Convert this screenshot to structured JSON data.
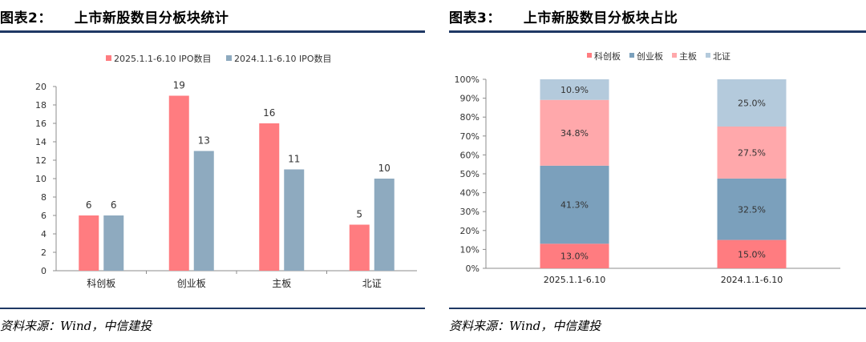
{
  "figures": {
    "left": {
      "label": "图表2：",
      "title": "上市新股数目分板块统计",
      "source": "资料来源：Wind，中信建投"
    },
    "right": {
      "label": "图表3：",
      "title": "上市新股数目分板块占比",
      "source": "资料来源：Wind，中信建投"
    }
  },
  "chart_data": [
    {
      "type": "bar",
      "title": "",
      "categories": [
        "科创板",
        "创业板",
        "主板",
        "北证"
      ],
      "series": [
        {
          "name": "2025.1.1-6.10 IPO数目",
          "values": [
            6,
            19,
            16,
            5
          ],
          "color": "#ff7c80"
        },
        {
          "name": "2024.1.1-6.10 IPO数目",
          "values": [
            6,
            13,
            11,
            10
          ],
          "color": "#8eaabf"
        }
      ],
      "ylim": [
        0,
        20
      ],
      "yticks": [
        0,
        2,
        4,
        6,
        8,
        10,
        12,
        14,
        16,
        18,
        20
      ],
      "grid": false,
      "legend": "top",
      "data_labels": true
    },
    {
      "type": "bar",
      "stacked": true,
      "percent": true,
      "title": "",
      "categories": [
        "2025.1.1-6.10",
        "2024.1.1-6.10"
      ],
      "series": [
        {
          "name": "科创板",
          "values": [
            13.0,
            15.0
          ],
          "labels": [
            "13.0%",
            "15.0%"
          ],
          "color": "#ff7c80"
        },
        {
          "name": "创业板",
          "values": [
            41.3,
            32.5
          ],
          "labels": [
            "41.3%",
            "32.5%"
          ],
          "color": "#7ba0bc"
        },
        {
          "name": "主板",
          "values": [
            34.8,
            27.5
          ],
          "labels": [
            "34.8%",
            "27.5%"
          ],
          "color": "#ffa8ab"
        },
        {
          "name": "北证",
          "values": [
            10.9,
            25.0
          ],
          "labels": [
            "10.9%",
            "25.0%"
          ],
          "color": "#b4cadc"
        }
      ],
      "ylim": [
        0,
        100
      ],
      "yticks": [
        "0%",
        "10%",
        "20%",
        "30%",
        "40%",
        "50%",
        "60%",
        "70%",
        "80%",
        "90%",
        "100%"
      ],
      "grid": false,
      "legend": "top"
    }
  ]
}
